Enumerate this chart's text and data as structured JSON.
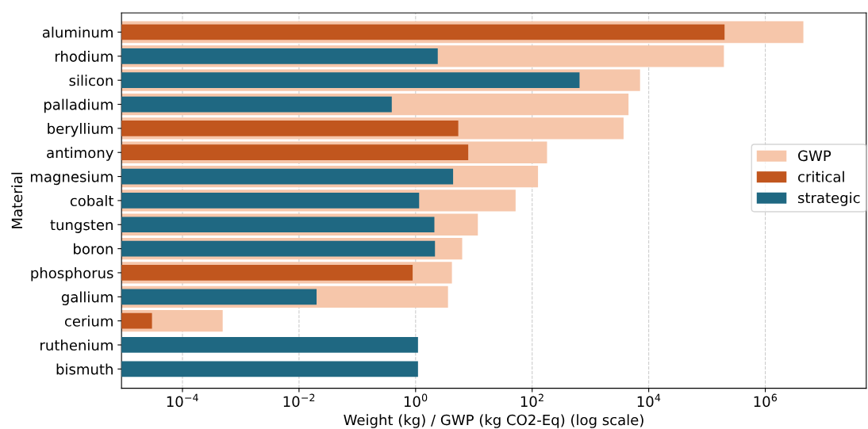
{
  "chart_data": {
    "type": "bar",
    "orientation": "horizontal",
    "log": "x",
    "xlabel": "Weight (kg) / GWP (kg CO2-Eq) (log scale)",
    "ylabel": "Material",
    "categories": [
      "aluminum",
      "rhodium",
      "silicon",
      "palladium",
      "beryllium",
      "antimony",
      "magnesium",
      "cobalt",
      "tungsten",
      "boron",
      "phosphorus",
      "gallium",
      "cerium",
      "ruthenium",
      "bismuth"
    ],
    "series": [
      {
        "name": "GWP",
        "color": "#f6c6aa",
        "values": [
          4500000,
          195000,
          7100,
          4500,
          3700,
          180,
          126,
          52,
          11.7,
          6.3,
          4.2,
          3.6,
          0.00049,
          null,
          null
        ]
      },
      {
        "name": "critical",
        "color": "#c1561e",
        "values": [
          200000,
          null,
          null,
          null,
          5.4,
          8.0,
          null,
          null,
          null,
          null,
          0.89,
          null,
          3e-05,
          null,
          null
        ]
      },
      {
        "name": "strategic",
        "color": "#1f6882",
        "values": [
          null,
          2.4,
          650,
          0.39,
          null,
          null,
          4.4,
          1.15,
          2.1,
          2.15,
          null,
          0.02,
          null,
          1.1,
          1.1
        ]
      }
    ],
    "xlim": [
      9e-06,
      54000000
    ],
    "xticks": [
      {
        "value": 0.0001,
        "label": "10$^{−4}$"
      },
      {
        "value": 0.01,
        "label": "10$^{−2}$"
      },
      {
        "value": 1,
        "label": "10$^{0}$"
      },
      {
        "value": 100,
        "label": "10$^{2}$"
      },
      {
        "value": 10000,
        "label": "10$^{4}$"
      },
      {
        "value": 1000000,
        "label": "10$^{6}$"
      }
    ],
    "grid": "x",
    "legend": "right"
  }
}
